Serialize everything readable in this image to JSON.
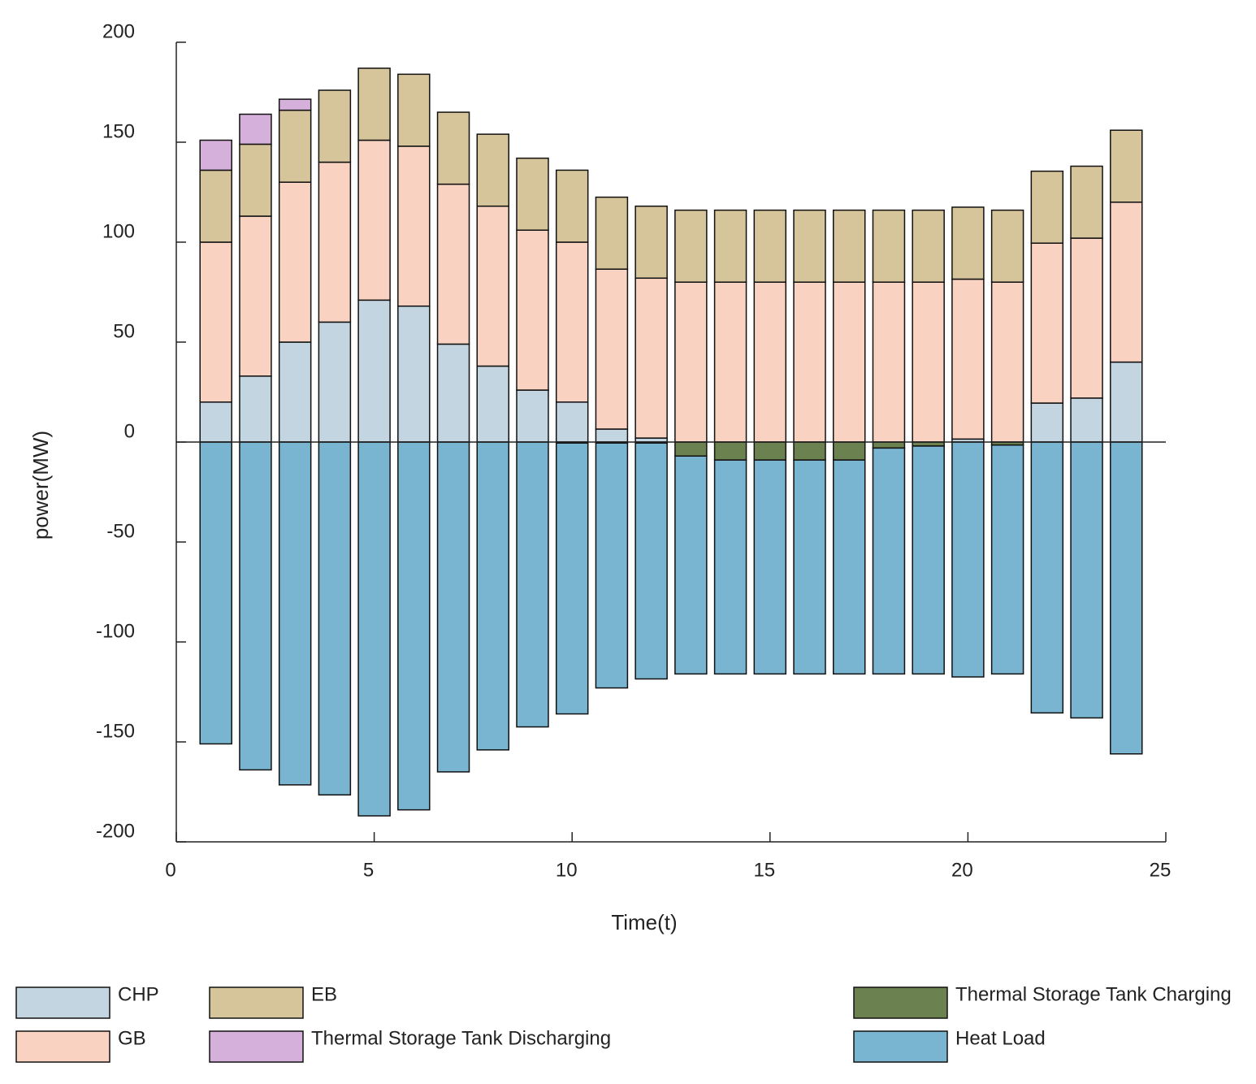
{
  "chart_data": {
    "type": "stacked_bar",
    "xlabel": "Time(t)",
    "ylabel": "power(MW)",
    "x": [
      1,
      2,
      3,
      4,
      5,
      6,
      7,
      8,
      9,
      10,
      11,
      12,
      13,
      14,
      15,
      16,
      17,
      18,
      19,
      20,
      21,
      22,
      23,
      24
    ],
    "xlim": [
      0,
      25
    ],
    "xticks": [
      0,
      5,
      10,
      15,
      20,
      25
    ],
    "ylim": [
      -200,
      200
    ],
    "yticks": [
      -200,
      -150,
      -100,
      -50,
      0,
      50,
      100,
      150,
      200
    ],
    "series": [
      {
        "name": "CHP",
        "color": "#c3d5e1",
        "values": [
          20,
          33,
          50,
          60,
          71,
          68,
          49,
          38,
          26,
          20,
          6.5,
          2,
          0,
          0,
          0,
          0,
          0,
          0,
          0,
          1.5,
          0,
          19.5,
          22,
          40
        ]
      },
      {
        "name": "GB",
        "color": "#f9d2c1",
        "values": [
          80,
          80,
          80,
          80,
          80,
          80,
          80,
          80,
          80,
          80,
          80,
          80,
          80,
          80,
          80,
          80,
          80,
          80,
          80,
          80,
          80,
          80,
          80,
          80
        ]
      },
      {
        "name": "EB",
        "color": "#d6c49a",
        "values": [
          36,
          36,
          36,
          36,
          36,
          36,
          36,
          36,
          36,
          36,
          36,
          36,
          36,
          36,
          36,
          36,
          36,
          36,
          36,
          36,
          36,
          36,
          36,
          36
        ]
      },
      {
        "name": "Thermal Storage Tank Discharging",
        "color": "#d5b0da",
        "values": [
          15,
          15,
          5.5,
          0,
          0,
          0,
          0,
          0,
          0,
          0,
          0,
          0,
          0,
          0,
          0,
          0,
          0,
          0,
          0,
          0,
          0,
          0,
          0,
          0
        ]
      },
      {
        "name": "Thermal Storage Tank Charging",
        "color": "#6b8150",
        "values": [
          0,
          0,
          0,
          0,
          0,
          0,
          0,
          0,
          0,
          -0.5,
          -0.5,
          -0.5,
          -7,
          -9,
          -9,
          -9,
          -9,
          -3,
          -2,
          0,
          -1.5,
          0,
          0,
          0
        ]
      },
      {
        "name": "Heat Load",
        "color": "#79b5d0",
        "values": [
          -151,
          -164,
          -171.5,
          -176.5,
          -187,
          -184,
          -165,
          -154,
          -142.5,
          -135.5,
          -122.5,
          -118,
          -109,
          -107,
          -107,
          -107,
          -107,
          -113,
          -114,
          -117.5,
          -114.5,
          -135.5,
          -138,
          -156
        ]
      }
    ]
  }
}
